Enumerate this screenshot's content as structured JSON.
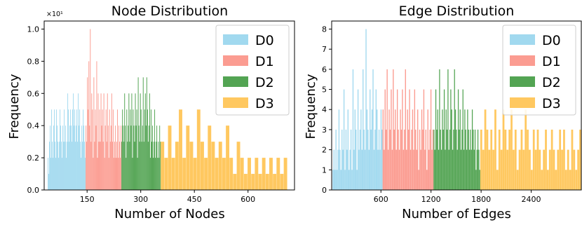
{
  "chart_data": [
    {
      "type": "bar",
      "title": "Node Distribution",
      "xlabel": "Number of Nodes",
      "ylabel": "Frequency",
      "y_offset_label": "×10¹",
      "xlim": [
        30,
        730
      ],
      "ylim": [
        0,
        1.05
      ],
      "xticks": [
        150,
        300,
        450,
        600
      ],
      "yticks": [
        0.0,
        0.2,
        0.4,
        0.6,
        0.8,
        1.0
      ],
      "ytick_labels": [
        "0.0",
        "0.2",
        "0.4",
        "0.6",
        "0.8",
        "1.0"
      ],
      "legend": {
        "placement": "top-right"
      },
      "series": [
        {
          "name": "D0",
          "color": "#87CEEB",
          "x_range": [
            40,
            146
          ],
          "values": [
            0.2,
            0.1,
            0.3,
            0.4,
            0.2,
            0.5,
            0.3,
            0.2,
            0.4,
            0.5,
            0.3,
            0.2,
            0.5,
            0.4,
            0.3,
            0.2,
            0.3,
            0.5,
            0.4,
            0.3,
            0.2,
            0.4,
            0.3,
            0.5,
            0.3,
            0.4,
            0.2,
            0.3,
            0.6,
            0.5,
            0.3,
            0.4,
            0.5,
            0.4,
            0.3,
            0.5,
            0.6,
            0.4,
            0.5,
            0.3,
            0.4,
            0.5,
            0.3,
            0.6,
            0.4,
            0.5,
            0.3,
            0.2,
            0.4,
            0.3,
            0.5,
            0.4,
            0.3,
            0.2
          ]
        },
        {
          "name": "D1",
          "color": "#FA8072",
          "x_range": [
            146,
            246
          ],
          "values": [
            0.4,
            0.3,
            0.7,
            0.5,
            0.8,
            0.4,
            1.0,
            0.3,
            0.6,
            0.5,
            0.2,
            0.7,
            0.3,
            0.5,
            0.4,
            0.8,
            0.2,
            0.6,
            0.3,
            0.5,
            0.3,
            0.6,
            0.4,
            0.5,
            0.3,
            0.6,
            0.2,
            0.4,
            0.5,
            0.3,
            0.6,
            0.4,
            0.2,
            0.5,
            0.3,
            0.4,
            0.6,
            0.3,
            0.5,
            0.2,
            0.3,
            0.4,
            0.2,
            0.3,
            0.5,
            0.2,
            0.4,
            0.3,
            0.2,
            0.4
          ]
        },
        {
          "name": "D2",
          "color": "#228B22",
          "x_range": [
            246,
            356
          ],
          "values": [
            0.3,
            0.5,
            0.4,
            0.3,
            0.6,
            0.4,
            0.2,
            0.5,
            0.3,
            0.4,
            0.6,
            0.3,
            0.5,
            0.4,
            0.6,
            0.2,
            0.5,
            0.4,
            0.3,
            0.6,
            0.4,
            0.5,
            0.2,
            0.7,
            0.4,
            0.3,
            0.6,
            0.5,
            0.3,
            0.4,
            0.7,
            0.3,
            0.5,
            0.6,
            0.4,
            0.7,
            0.5,
            0.3,
            0.4,
            0.6,
            0.2,
            0.5,
            0.3,
            0.4,
            0.2,
            0.3,
            0.5,
            0.2,
            0.3,
            0.4,
            0.2,
            0.3,
            0.2,
            0.4,
            0.3
          ]
        },
        {
          "name": "D3",
          "color": "#FFB833",
          "x_range": [
            356,
            710
          ],
          "values": [
            0.3,
            0.2,
            0.4,
            0.2,
            0.3,
            0.5,
            0.2,
            0.4,
            0.3,
            0.2,
            0.5,
            0.3,
            0.2,
            0.4,
            0.3,
            0.2,
            0.3,
            0.2,
            0.4,
            0.2,
            0.1,
            0.3,
            0.2,
            0.1,
            0.2,
            0.1,
            0.2,
            0.1,
            0.2,
            0.1,
            0.2,
            0.1,
            0.2,
            0.1,
            0.2
          ]
        }
      ]
    },
    {
      "type": "bar",
      "title": "Edge Distribution",
      "xlabel": "Number of Edges",
      "ylabel": "Frequency",
      "xlim": [
        10,
        3000
      ],
      "ylim": [
        0,
        8.4
      ],
      "xticks": [
        600,
        1200,
        1800,
        2400
      ],
      "yticks": [
        0,
        1,
        2,
        3,
        4,
        5,
        6,
        7,
        8
      ],
      "ytick_labels": [
        "0",
        "1",
        "2",
        "3",
        "4",
        "5",
        "6",
        "7",
        "8"
      ],
      "legend": {
        "placement": "top-right"
      },
      "series": [
        {
          "name": "D0",
          "color": "#87CEEB",
          "x_range": [
            20,
            620
          ],
          "values": [
            1,
            2,
            1,
            3,
            1,
            2,
            4,
            2,
            1,
            3,
            2,
            5,
            1,
            3,
            2,
            4,
            1,
            2,
            3,
            1,
            6,
            2,
            4,
            3,
            1,
            5,
            2,
            3,
            4,
            2,
            6,
            3,
            2,
            8,
            4,
            3,
            2,
            5,
            3,
            4,
            6,
            2,
            3,
            5,
            4,
            2,
            3,
            2,
            4,
            3
          ]
        },
        {
          "name": "D1",
          "color": "#FA8072",
          "x_range": [
            620,
            1230
          ],
          "values": [
            4,
            2,
            5,
            3,
            6,
            2,
            4,
            3,
            5,
            2,
            6,
            3,
            4,
            2,
            5,
            3,
            2,
            4,
            3,
            5,
            2,
            3,
            6,
            2,
            4,
            3,
            5,
            2,
            3,
            4,
            2,
            5,
            3,
            2,
            4,
            1,
            3,
            2,
            4,
            3,
            5,
            2,
            3,
            1,
            4,
            2,
            3,
            5,
            2,
            3
          ]
        },
        {
          "name": "D2",
          "color": "#228B22",
          "x_range": [
            1230,
            1790
          ],
          "values": [
            3,
            2,
            5,
            3,
            4,
            2,
            6,
            3,
            2,
            4,
            3,
            5,
            2,
            4,
            3,
            6,
            2,
            3,
            5,
            4,
            2,
            3,
            6,
            4,
            3,
            2,
            5,
            3,
            4,
            2,
            3,
            5,
            2,
            4,
            3,
            2,
            4,
            3,
            2,
            3,
            2,
            4,
            3,
            2,
            3,
            1,
            2,
            3,
            2,
            1
          ]
        },
        {
          "name": "D3",
          "color": "#FFB833",
          "x_range": [
            1790,
            3000
          ],
          "values": [
            3,
            2,
            4,
            3,
            2,
            3,
            2,
            4,
            1,
            3,
            2,
            4,
            3,
            2,
            3,
            4,
            2,
            3,
            1,
            2,
            3,
            2,
            4,
            3,
            2,
            1,
            3,
            2,
            3,
            2,
            1,
            2,
            3,
            1,
            2,
            3,
            2,
            1,
            2,
            3,
            2,
            3,
            1,
            2,
            1,
            3,
            2,
            1,
            2,
            3
          ]
        }
      ]
    }
  ]
}
